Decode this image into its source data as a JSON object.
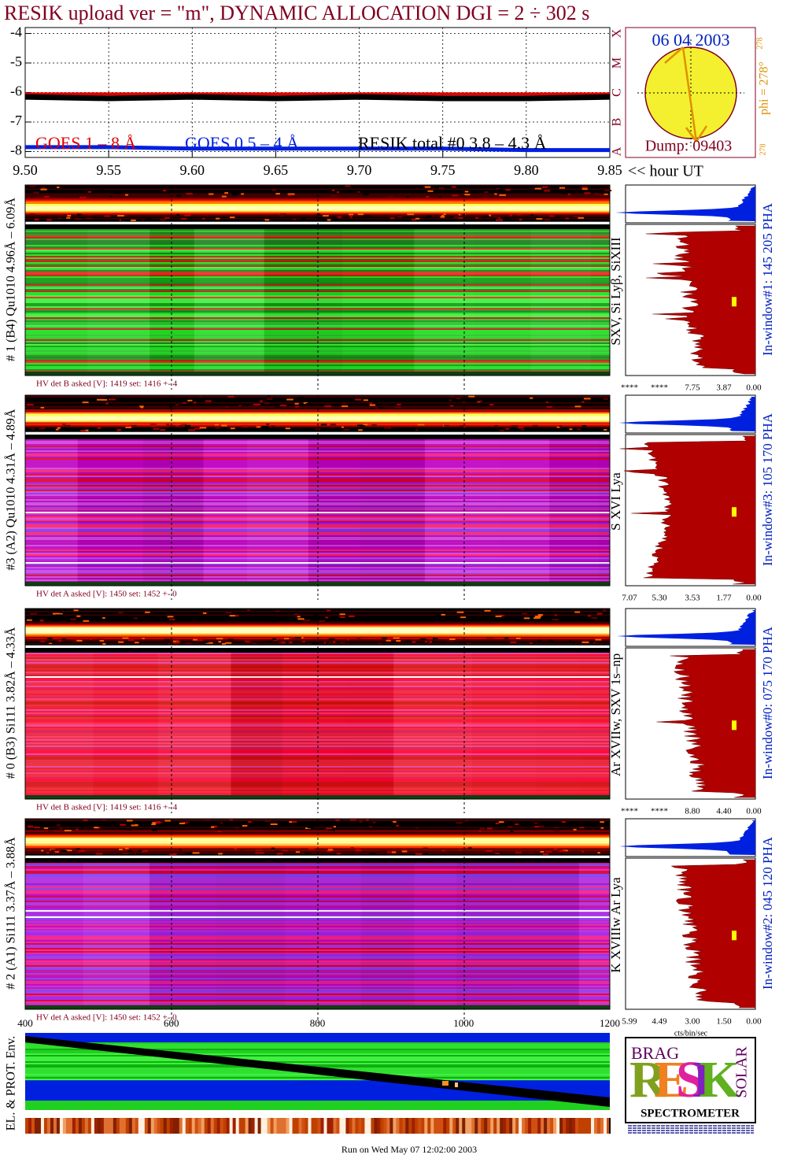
{
  "chart_data": {
    "type": "line",
    "title": "RESIK upload ver = \"m\", DYNAMIC ALLOCATION  DGI =   2 ÷ 302 s",
    "xlabel": "<< hour UT",
    "x": [
      9.5,
      9.55,
      9.6,
      9.65,
      9.7,
      9.75,
      9.8,
      9.85
    ],
    "xlim": [
      9.5,
      9.85
    ],
    "xticks": [
      {
        "value": 9.5,
        "label": "9.50"
      },
      {
        "value": 9.55,
        "label": "9.55"
      },
      {
        "value": 9.6,
        "label": "9.60"
      },
      {
        "value": 9.65,
        "label": "9.65"
      },
      {
        "value": 9.7,
        "label": "9.70"
      },
      {
        "value": 9.75,
        "label": "9.75"
      },
      {
        "value": 9.8,
        "label": "9.80"
      },
      {
        "value": 9.85,
        "label": "9.85"
      }
    ],
    "ylim": [
      -8.2,
      -3.8
    ],
    "yticks": [
      -4,
      -5,
      -6,
      -7,
      -8
    ],
    "grid": true,
    "series": [
      {
        "name": "GOES 1 – 8 Å",
        "color": "#e00000",
        "values": [
          -6.05,
          -6.05,
          -6.05,
          -6.05,
          -6.05,
          -6.05,
          -6.05,
          -6.05
        ]
      },
      {
        "name": "GOES 0.5 – 4 Å",
        "color": "#0020e0",
        "values": [
          -7.85,
          -7.85,
          -7.9,
          -7.9,
          -7.9,
          -7.9,
          -7.95,
          -7.95
        ]
      },
      {
        "name": "RESIK total #0  3.8 – 4.3 Å",
        "color": "#000000",
        "values": [
          -6.15,
          -6.2,
          -6.15,
          -6.2,
          -6.15,
          -6.2,
          -6.2,
          -6.15
        ]
      }
    ]
  },
  "goes_classes": [
    "X",
    "M",
    "C",
    "B",
    "A"
  ],
  "sun_panel": {
    "date": "06 04 2003",
    "dump": "Dump: 09403",
    "phi": "phi = 278°",
    "phi_sup": "278",
    "corner": "278"
  },
  "detectors": [
    {
      "label": "# 1 (B4) Qu1010 4.96Å – 6.09Å",
      "lines": "SXV, Si Lyβ, SiXIII",
      "hv": "HV det B asked [V]:  1419 set:  1416 +-    4",
      "hist_ticks": [
        "****",
        "****",
        "7.75",
        "3.87",
        "0.00"
      ],
      "pha": "In-window#1:  145 205 PHA"
    },
    {
      "label": "#3 (A2) Qu1010  4.31Å – 4.89Å",
      "lines": "S XVI Lya",
      "hv": "HV det A asked [V]:  1450 set:  1452 +-     0",
      "hist_ticks": [
        "7.07",
        "5.30",
        "3.53",
        "1.77",
        "0.00"
      ],
      "pha": "In-window#3:  105 170 PHA"
    },
    {
      "label": "# 0 (B3) Si111  3.82Å – 4.33Å",
      "lines": "Ar XVIIw,  SXV 1s–np",
      "hv": "HV det B asked [V]:  1419 set:  1416 +-    4",
      "hist_ticks": [
        "****",
        "****",
        "8.80",
        "4.40",
        "0.00"
      ],
      "pha": "In-window#0:  075 170 PHA"
    },
    {
      "label": "# 2 (A1) Si111  3.37Å – 3.88Å",
      "lines": "K XVIIIw  Ar Lya",
      "hv": "HV det A asked [V]:  1450 set:  1452 +-     0",
      "hist_ticks": [
        "5.99",
        "4.49",
        "3.00",
        "1.50",
        "0.00"
      ],
      "pha": "In-window#2:  045 120 PHA"
    }
  ],
  "pixel_axis": {
    "ticks": [
      "400",
      "600",
      "800",
      "1000",
      "1200"
    ]
  },
  "hist_axis_label": "cts/bin/sec",
  "env_label": "EL. & PROT. Env.",
  "logo": {
    "brag": "BRAG",
    "resik": "RESIK",
    "solar": "SOLAR",
    "spectrometer": "SPECTROMETER"
  },
  "footer": "Run on Wed May 07 12:02:00 2003"
}
